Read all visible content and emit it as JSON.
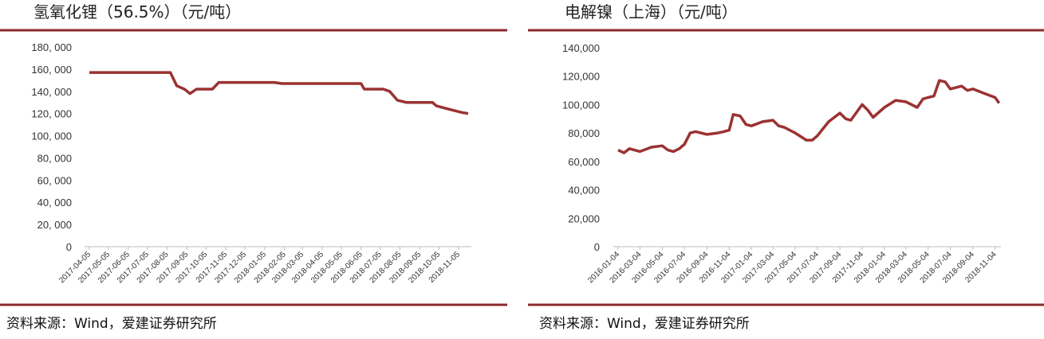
{
  "chart_data": [
    {
      "type": "line",
      "title": "氢氧化锂（56.5%）（元/吨）",
      "source": "资料来源：Wind，爱建证券研究所",
      "xlim": [
        "2017-04-05",
        "2018-11-25"
      ],
      "xticks": [
        "2017-04-05",
        "2017-05-05",
        "2017-06-05",
        "2017-07-05",
        "2017-08-05",
        "2017-09-05",
        "2017-10-05",
        "2017-11-05",
        "2017-12-05",
        "2018-01-05",
        "2018-02-05",
        "2018-03-05",
        "2018-04-05",
        "2018-05-05",
        "2018-06-05",
        "2018-07-05",
        "2018-08-05",
        "2018-09-05",
        "2018-10-05",
        "2018-11-05"
      ],
      "ylim": [
        0,
        180000
      ],
      "yticks": [
        0,
        {
          "value": 20000,
          "label": "20, 000"
        },
        {
          "value": 40000,
          "label": "40, 000"
        },
        {
          "value": 60000,
          "label": "60, 000"
        },
        {
          "value": 80000,
          "label": "80, 000"
        },
        {
          "value": 100000,
          "label": "100, 000"
        },
        {
          "value": 120000,
          "label": "120, 000"
        },
        {
          "value": 140000,
          "label": "140, 000"
        },
        {
          "value": 160000,
          "label": "160, 000"
        },
        {
          "value": 180000,
          "label": "180, 000"
        }
      ],
      "series": [
        {
          "color": "#9b3232",
          "x": [
            "2017-04-05",
            "2017-08-10",
            "2017-08-20",
            "2017-09-01",
            "2017-09-10",
            "2017-09-20",
            "2017-10-15",
            "2017-10-25",
            "2018-01-20",
            "2018-02-01",
            "2018-06-05",
            "2018-06-10",
            "2018-07-10",
            "2018-07-20",
            "2018-08-01",
            "2018-08-15",
            "2018-09-25",
            "2018-10-01",
            "2018-10-20",
            "2018-11-10",
            "2018-11-20"
          ],
          "values": [
            157000,
            157000,
            145000,
            142000,
            138000,
            142000,
            142000,
            148000,
            148000,
            147000,
            147000,
            142000,
            142000,
            140000,
            132000,
            130000,
            130000,
            127000,
            124000,
            121000,
            120000
          ]
        }
      ]
    },
    {
      "type": "line",
      "title": "电解镍（上海）（元/吨）",
      "source": "资料来源：Wind，爱建证券研究所",
      "xlim": [
        "2016-01-04",
        "2018-11-20"
      ],
      "xticks": [
        "2016-01-04",
        "2016-03-04",
        "2016-05-04",
        "2016-07-04",
        "2016-09-04",
        "2016-11-04",
        "2017-01-04",
        "2017-03-04",
        "2017-05-04",
        "2017-07-04",
        "2017-09-04",
        "2017-11-04",
        "2018-01-04",
        "2018-03-04",
        "2018-05-04",
        "2018-07-04",
        "2018-09-04",
        "2018-11-04"
      ],
      "ylim": [
        0,
        140000
      ],
      "yticks": [
        0,
        {
          "value": 20000,
          "label": "20,000"
        },
        {
          "value": 40000,
          "label": "40,000"
        },
        {
          "value": 60000,
          "label": "60,000"
        },
        {
          "value": 80000,
          "label": "80,000"
        },
        {
          "value": 100000,
          "label": "100,000"
        },
        {
          "value": 120000,
          "label": "120,000"
        },
        {
          "value": 140000,
          "label": "140,000"
        }
      ],
      "series": [
        {
          "color": "#9b3232",
          "x": [
            "2016-01-04",
            "2016-01-20",
            "2016-02-04",
            "2016-03-04",
            "2016-04-04",
            "2016-05-04",
            "2016-05-20",
            "2016-06-04",
            "2016-06-20",
            "2016-07-04",
            "2016-07-20",
            "2016-08-04",
            "2016-09-04",
            "2016-10-04",
            "2016-10-20",
            "2016-11-04",
            "2016-11-15",
            "2016-12-04",
            "2016-12-20",
            "2017-01-04",
            "2017-02-04",
            "2017-03-04",
            "2017-03-20",
            "2017-04-04",
            "2017-05-04",
            "2017-06-04",
            "2017-06-20",
            "2017-07-04",
            "2017-08-04",
            "2017-09-04",
            "2017-09-20",
            "2017-10-04",
            "2017-11-04",
            "2017-11-20",
            "2017-12-04",
            "2018-01-04",
            "2018-02-04",
            "2018-03-04",
            "2018-04-04",
            "2018-04-20",
            "2018-05-04",
            "2018-05-20",
            "2018-06-04",
            "2018-06-20",
            "2018-07-04",
            "2018-08-04",
            "2018-08-20",
            "2018-09-04",
            "2018-10-04",
            "2018-11-04",
            "2018-11-15"
          ],
          "values": [
            68000,
            66000,
            69000,
            67000,
            70000,
            71000,
            68000,
            67000,
            69000,
            72000,
            80000,
            81000,
            79000,
            80000,
            81000,
            82000,
            93000,
            92000,
            86000,
            85000,
            88000,
            89000,
            85000,
            84000,
            80000,
            75000,
            75000,
            78000,
            88000,
            94000,
            90000,
            89000,
            100000,
            96000,
            91000,
            98000,
            103000,
            102000,
            98000,
            104000,
            105000,
            106000,
            117000,
            116000,
            111000,
            113000,
            110000,
            111000,
            108000,
            105000,
            101000
          ]
        }
      ]
    }
  ]
}
